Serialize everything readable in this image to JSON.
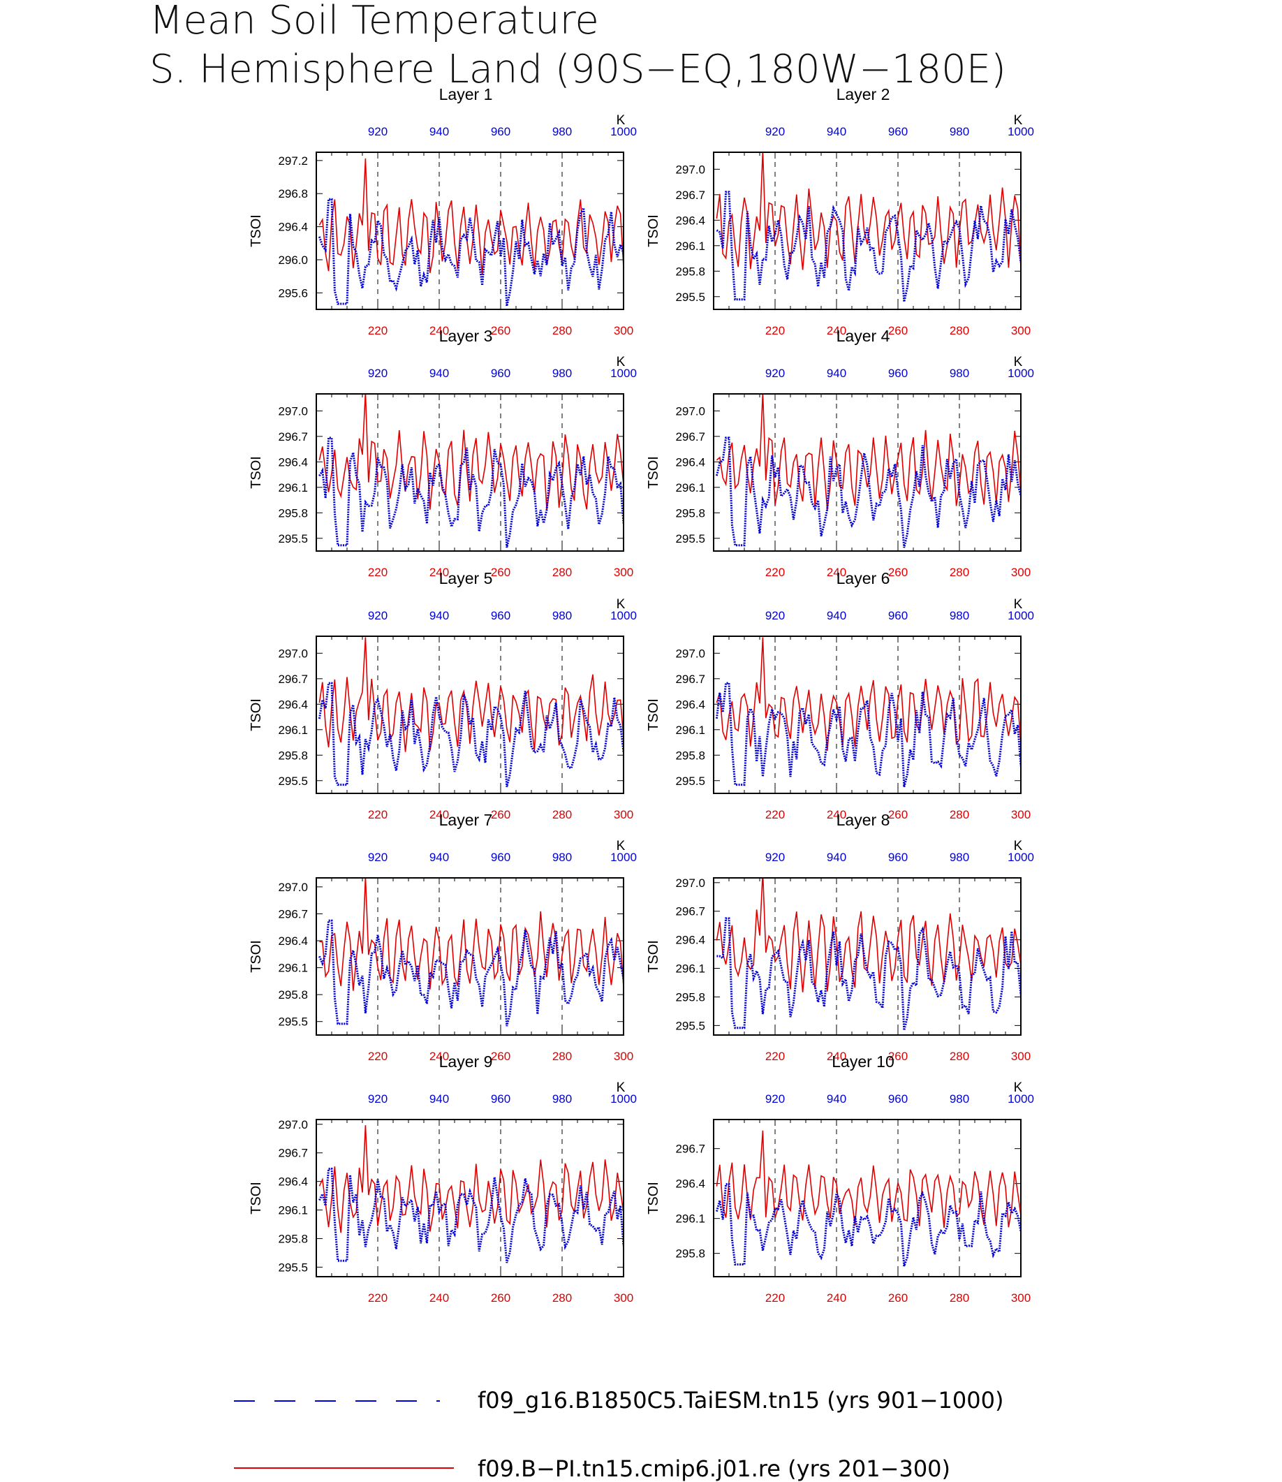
{
  "title": [
    "Mean Soil Temperature",
    "S. Hemisphere Land (90S−EQ,180W−180E)"
  ],
  "colors": {
    "series_blue": "#0000dd",
    "series_red": "#e00000",
    "axis": "#000000",
    "grid": "#000000"
  },
  "legend": [
    {
      "label": "f09_g16.B1850C5.TaiESM.tn15 (yrs 901−1000)",
      "style": "dashed",
      "color": "#0000dd"
    },
    {
      "label": "f09.B−PI.tn15.cmip6.j01.re (yrs 201−300)",
      "style": "solid",
      "color": "#e00000"
    }
  ],
  "chart_data": [
    {
      "type": "line",
      "title": "Layer 1",
      "ylabel": "TSOI",
      "unit_label": "K",
      "xlim_bottom": [
        200,
        300
      ],
      "xlim_top": [
        900,
        1000
      ],
      "xticks_bottom": [
        "220",
        "240",
        "260",
        "280",
        "300"
      ],
      "xticks_top": [
        "920",
        "940",
        "960",
        "980",
        "1000"
      ],
      "ylim": [
        295.4,
        297.3
      ],
      "yticks": [
        "295.6",
        "296.0",
        "296.4",
        "296.8",
        "297.2"
      ],
      "ytick_values": [
        295.6,
        296.0,
        296.4,
        296.8,
        297.2
      ],
      "red_base": 296.3,
      "red_amp": 0.5,
      "blue_base": 296.1,
      "blue_amp": 0.55
    },
    {
      "type": "line",
      "title": "Layer 2",
      "ylabel": "TSOI",
      "unit_label": "K",
      "xlim_bottom": [
        200,
        300
      ],
      "xlim_top": [
        900,
        1000
      ],
      "xticks_bottom": [
        "220",
        "240",
        "260",
        "280",
        "300"
      ],
      "xticks_top": [
        "920",
        "940",
        "960",
        "980",
        "1000"
      ],
      "ylim": [
        295.35,
        297.2
      ],
      "yticks": [
        "295.5",
        "295.8",
        "296.1",
        "296.4",
        "296.7",
        "297.0"
      ],
      "ytick_values": [
        295.5,
        295.8,
        296.1,
        296.4,
        296.7,
        297.0
      ],
      "red_base": 296.3,
      "red_amp": 0.5,
      "blue_base": 296.1,
      "blue_amp": 0.55
    },
    {
      "type": "line",
      "title": "Layer 3",
      "ylabel": "TSOI",
      "unit_label": "K",
      "xlim_bottom": [
        200,
        300
      ],
      "xlim_top": [
        900,
        1000
      ],
      "xticks_bottom": [
        "220",
        "240",
        "260",
        "280",
        "300"
      ],
      "xticks_top": [
        "920",
        "940",
        "960",
        "980",
        "1000"
      ],
      "ylim": [
        295.35,
        297.2
      ],
      "yticks": [
        "295.5",
        "295.8",
        "296.1",
        "296.4",
        "296.7",
        "297.0"
      ],
      "ytick_values": [
        295.5,
        295.8,
        296.1,
        296.4,
        296.7,
        297.0
      ],
      "red_base": 296.3,
      "red_amp": 0.5,
      "blue_base": 296.05,
      "blue_amp": 0.55
    },
    {
      "type": "line",
      "title": "Layer 4",
      "ylabel": "TSOI",
      "unit_label": "K",
      "xlim_bottom": [
        200,
        300
      ],
      "xlim_top": [
        900,
        1000
      ],
      "xticks_bottom": [
        "220",
        "240",
        "260",
        "280",
        "300"
      ],
      "xticks_top": [
        "920",
        "940",
        "960",
        "980",
        "1000"
      ],
      "ylim": [
        295.35,
        297.2
      ],
      "yticks": [
        "295.5",
        "295.8",
        "296.1",
        "296.4",
        "296.7",
        "297.0"
      ],
      "ytick_values": [
        295.5,
        295.8,
        296.1,
        296.4,
        296.7,
        297.0
      ],
      "red_base": 296.3,
      "red_amp": 0.5,
      "blue_base": 296.05,
      "blue_amp": 0.55
    },
    {
      "type": "line",
      "title": "Layer 5",
      "ylabel": "TSOI",
      "unit_label": "K",
      "xlim_bottom": [
        200,
        300
      ],
      "xlim_top": [
        900,
        1000
      ],
      "xticks_bottom": [
        "220",
        "240",
        "260",
        "280",
        "300"
      ],
      "xticks_top": [
        "920",
        "940",
        "960",
        "980",
        "1000"
      ],
      "ylim": [
        295.35,
        297.2
      ],
      "yticks": [
        "295.5",
        "295.8",
        "296.1",
        "296.4",
        "296.7",
        "297.0"
      ],
      "ytick_values": [
        295.5,
        295.8,
        296.1,
        296.4,
        296.7,
        297.0
      ],
      "red_base": 296.3,
      "red_amp": 0.48,
      "blue_base": 296.05,
      "blue_amp": 0.52
    },
    {
      "type": "line",
      "title": "Layer 6",
      "ylabel": "TSOI",
      "unit_label": "K",
      "xlim_bottom": [
        200,
        300
      ],
      "xlim_top": [
        900,
        1000
      ],
      "xticks_bottom": [
        "220",
        "240",
        "260",
        "280",
        "300"
      ],
      "xticks_top": [
        "920",
        "940",
        "960",
        "980",
        "1000"
      ],
      "ylim": [
        295.35,
        297.2
      ],
      "yticks": [
        "295.5",
        "295.8",
        "296.1",
        "296.4",
        "296.7",
        "297.0"
      ],
      "ytick_values": [
        295.5,
        295.8,
        296.1,
        296.4,
        296.7,
        297.0
      ],
      "red_base": 296.3,
      "red_amp": 0.48,
      "blue_base": 296.05,
      "blue_amp": 0.52
    },
    {
      "type": "line",
      "title": "Layer 7",
      "ylabel": "TSOI",
      "unit_label": "K",
      "xlim_bottom": [
        200,
        300
      ],
      "xlim_top": [
        900,
        1000
      ],
      "xticks_bottom": [
        "220",
        "240",
        "260",
        "280",
        "300"
      ],
      "xticks_top": [
        "920",
        "940",
        "960",
        "980",
        "1000"
      ],
      "ylim": [
        295.35,
        297.1
      ],
      "yticks": [
        "295.5",
        "295.8",
        "296.1",
        "296.4",
        "296.7",
        "297.0"
      ],
      "ytick_values": [
        295.5,
        295.8,
        296.1,
        296.4,
        296.7,
        297.0
      ],
      "red_base": 296.28,
      "red_amp": 0.45,
      "blue_base": 296.05,
      "blue_amp": 0.5
    },
    {
      "type": "line",
      "title": "Layer 8",
      "ylabel": "TSOI",
      "unit_label": "K",
      "xlim_bottom": [
        200,
        300
      ],
      "xlim_top": [
        900,
        1000
      ],
      "xticks_bottom": [
        "220",
        "240",
        "260",
        "280",
        "300"
      ],
      "xticks_top": [
        "920",
        "940",
        "960",
        "980",
        "1000"
      ],
      "ylim": [
        295.4,
        297.05
      ],
      "yticks": [
        "295.5",
        "295.8",
        "296.1",
        "296.4",
        "296.7",
        "297.0"
      ],
      "ytick_values": [
        295.5,
        295.8,
        296.1,
        296.4,
        296.7,
        297.0
      ],
      "red_base": 296.28,
      "red_amp": 0.45,
      "blue_base": 296.05,
      "blue_amp": 0.5
    },
    {
      "type": "line",
      "title": "Layer 9",
      "ylabel": "TSOI",
      "unit_label": "K",
      "xlim_bottom": [
        200,
        300
      ],
      "xlim_top": [
        900,
        1000
      ],
      "xticks_bottom": [
        "220",
        "240",
        "260",
        "280",
        "300"
      ],
      "xticks_top": [
        "920",
        "940",
        "960",
        "980",
        "1000"
      ],
      "ylim": [
        295.4,
        297.05
      ],
      "yticks": [
        "295.5",
        "295.8",
        "296.1",
        "296.4",
        "296.7",
        "297.0"
      ],
      "ytick_values": [
        295.5,
        295.8,
        296.1,
        296.4,
        296.7,
        297.0
      ],
      "red_base": 296.25,
      "red_amp": 0.4,
      "blue_base": 296.05,
      "blue_amp": 0.42
    },
    {
      "type": "line",
      "title": "Layer 10",
      "ylabel": "TSOI",
      "unit_label": "K",
      "xlim_bottom": [
        200,
        300
      ],
      "xlim_top": [
        900,
        1000
      ],
      "xticks_bottom": [
        "220",
        "240",
        "260",
        "280",
        "300"
      ],
      "xticks_top": [
        "920",
        "940",
        "960",
        "980",
        "1000"
      ],
      "ylim": [
        295.6,
        296.95
      ],
      "yticks": [
        "295.8",
        "296.1",
        "296.4",
        "296.7"
      ],
      "ytick_values": [
        295.8,
        296.1,
        296.4,
        296.7
      ],
      "red_base": 296.3,
      "red_amp": 0.3,
      "blue_base": 296.05,
      "blue_amp": 0.3
    }
  ]
}
